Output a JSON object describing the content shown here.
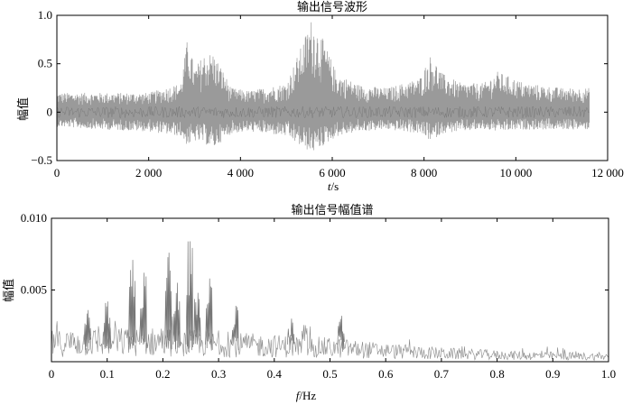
{
  "chart_data": [
    {
      "type": "line",
      "title": "输出信号波形",
      "xlabel_italic": "t",
      "xlabel_unit": "/s",
      "ylabel": "幅值",
      "xlim": [
        0,
        12000
      ],
      "ylim": [
        -0.5,
        1.0
      ],
      "xticks": [
        0,
        2000,
        4000,
        6000,
        8000,
        10000,
        12000
      ],
      "xtick_labels": [
        "0",
        "2 000",
        "4 000",
        "6 000",
        "8 000",
        "10 000",
        "12 000"
      ],
      "yticks": [
        -0.5,
        0,
        0.5,
        1.0
      ],
      "ytick_labels": [
        "−0.5",
        "0",
        "0.5",
        "1.0"
      ],
      "series": [
        {
          "color": "#9a9a9a",
          "x_range": [
            0,
            11600
          ],
          "envelope": {
            "x": [
              0,
              1000,
              2000,
              2700,
              2850,
              3000,
              3200,
              3400,
              3600,
              3800,
              4200,
              5000,
              5300,
              5550,
              5800,
              6100,
              6600,
              7200,
              7900,
              8150,
              8400,
              8800,
              9300,
              9600,
              10200,
              11000,
              11600
            ],
            "upper": [
              0.2,
              0.2,
              0.2,
              0.3,
              0.78,
              0.45,
              0.6,
              0.62,
              0.45,
              0.25,
              0.22,
              0.3,
              0.65,
              0.97,
              0.75,
              0.4,
              0.28,
              0.25,
              0.35,
              0.6,
              0.4,
              0.3,
              0.3,
              0.42,
              0.3,
              0.25,
              0.25
            ],
            "lower": [
              -0.15,
              -0.18,
              -0.2,
              -0.25,
              -0.35,
              -0.3,
              -0.32,
              -0.38,
              -0.3,
              -0.22,
              -0.2,
              -0.25,
              -0.35,
              -0.42,
              -0.35,
              -0.25,
              -0.2,
              -0.18,
              -0.22,
              -0.3,
              -0.22,
              -0.2,
              -0.18,
              -0.2,
              -0.18,
              -0.18,
              -0.18
            ]
          }
        }
      ]
    },
    {
      "type": "line",
      "title": "输出信号幅值谱",
      "xlabel_italic": "f",
      "xlabel_unit": "/Hz",
      "ylabel": "幅值",
      "xlim": [
        0,
        1.0
      ],
      "ylim": [
        0,
        0.01
      ],
      "xticks": [
        0,
        0.1,
        0.2,
        0.3,
        0.4,
        0.5,
        0.6,
        0.7,
        0.8,
        0.9,
        1.0
      ],
      "xtick_labels": [
        "0",
        "0.1",
        "0.2",
        "0.3",
        "0.4",
        "0.5",
        "0.6",
        "0.7",
        "0.8",
        "0.9",
        "1.0"
      ],
      "yticks": [
        0.005,
        0.01
      ],
      "ytick_labels": [
        "0.005",
        "0.010"
      ],
      "series": [
        {
          "color": "#8a8a8a",
          "noise_envelope": {
            "x": [
              0,
              0.1,
              0.2,
              0.3,
              0.4,
              0.5,
              0.6,
              0.7,
              0.8,
              0.9,
              1.0
            ],
            "level": [
              0.0022,
              0.0024,
              0.0024,
              0.0021,
              0.0019,
              0.0017,
              0.0013,
              0.001,
              0.0008,
              0.0007,
              0.0006
            ]
          },
          "peaks": {
            "x": [
              0.065,
              0.1,
              0.145,
              0.165,
              0.21,
              0.225,
              0.248,
              0.262,
              0.283,
              0.33,
              0.43,
              0.52
            ],
            "y": [
              0.0036,
              0.0042,
              0.0071,
              0.0062,
              0.0076,
              0.0055,
              0.0084,
              0.0048,
              0.0058,
              0.0039,
              0.003,
              0.0032
            ]
          }
        }
      ]
    }
  ]
}
